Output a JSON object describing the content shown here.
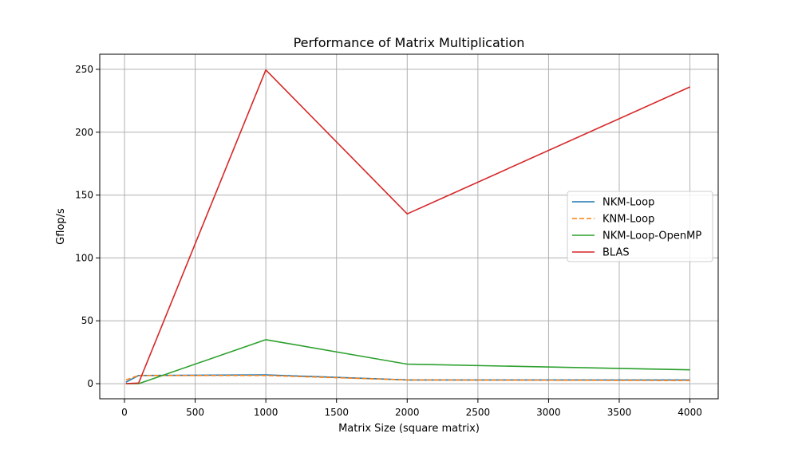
{
  "chart_data": {
    "type": "line",
    "title": "Performance of Matrix Multiplication",
    "xlabel": "Matrix Size (square matrix)",
    "ylabel": "Gflop/s",
    "xlim": [
      -175,
      4200
    ],
    "ylim": [
      -12,
      262
    ],
    "xticks": [
      0,
      500,
      1000,
      1500,
      2000,
      2500,
      3000,
      3500,
      4000
    ],
    "yticks": [
      0,
      50,
      100,
      150,
      200,
      250
    ],
    "grid": true,
    "legend_position": "center-right",
    "series": [
      {
        "name": "NKM-Loop",
        "color": "#1f77b4",
        "dash": "solid",
        "x": [
          10,
          100,
          1000,
          2000,
          4000
        ],
        "y": [
          1.2,
          6.5,
          7.0,
          3.0,
          3.0
        ]
      },
      {
        "name": "KNM-Loop",
        "color": "#ff7f0e",
        "dash": "dashed",
        "x": [
          10,
          100,
          1000,
          2000,
          4000
        ],
        "y": [
          3.0,
          6.5,
          6.5,
          3.0,
          2.5
        ]
      },
      {
        "name": "NKM-Loop-OpenMP",
        "color": "#2ca02c",
        "dash": "solid",
        "x": [
          10,
          100,
          1000,
          2000,
          4000
        ],
        "y": [
          0.0,
          0.0,
          35.0,
          15.5,
          11.0
        ]
      },
      {
        "name": "BLAS",
        "color": "#d62728",
        "dash": "solid",
        "x": [
          10,
          100,
          1000,
          2000,
          4000
        ],
        "y": [
          0.0,
          0.5,
          249.5,
          135.0,
          236.0
        ]
      }
    ]
  }
}
